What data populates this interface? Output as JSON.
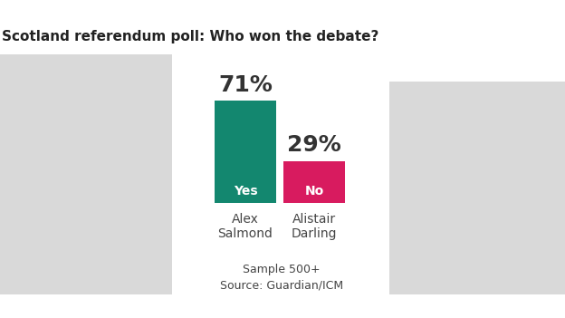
{
  "chart_data": {
    "type": "bar",
    "title": "Scotland referendum poll: Who won the debate?",
    "categories": [
      "Alex\nSalmond",
      "Alistair\nDarling"
    ],
    "values": [
      71,
      29
    ],
    "value_labels": [
      "71%",
      "29%"
    ],
    "data_labels": true,
    "bar_texts": [
      "Yes",
      "No"
    ],
    "colors": [
      "#13876f",
      "#d81b5f"
    ],
    "ylim": [
      0,
      100
    ],
    "tick_labels": "x",
    "notes": [
      "Sample 500+",
      "Source: Guardian/ICM"
    ]
  }
}
